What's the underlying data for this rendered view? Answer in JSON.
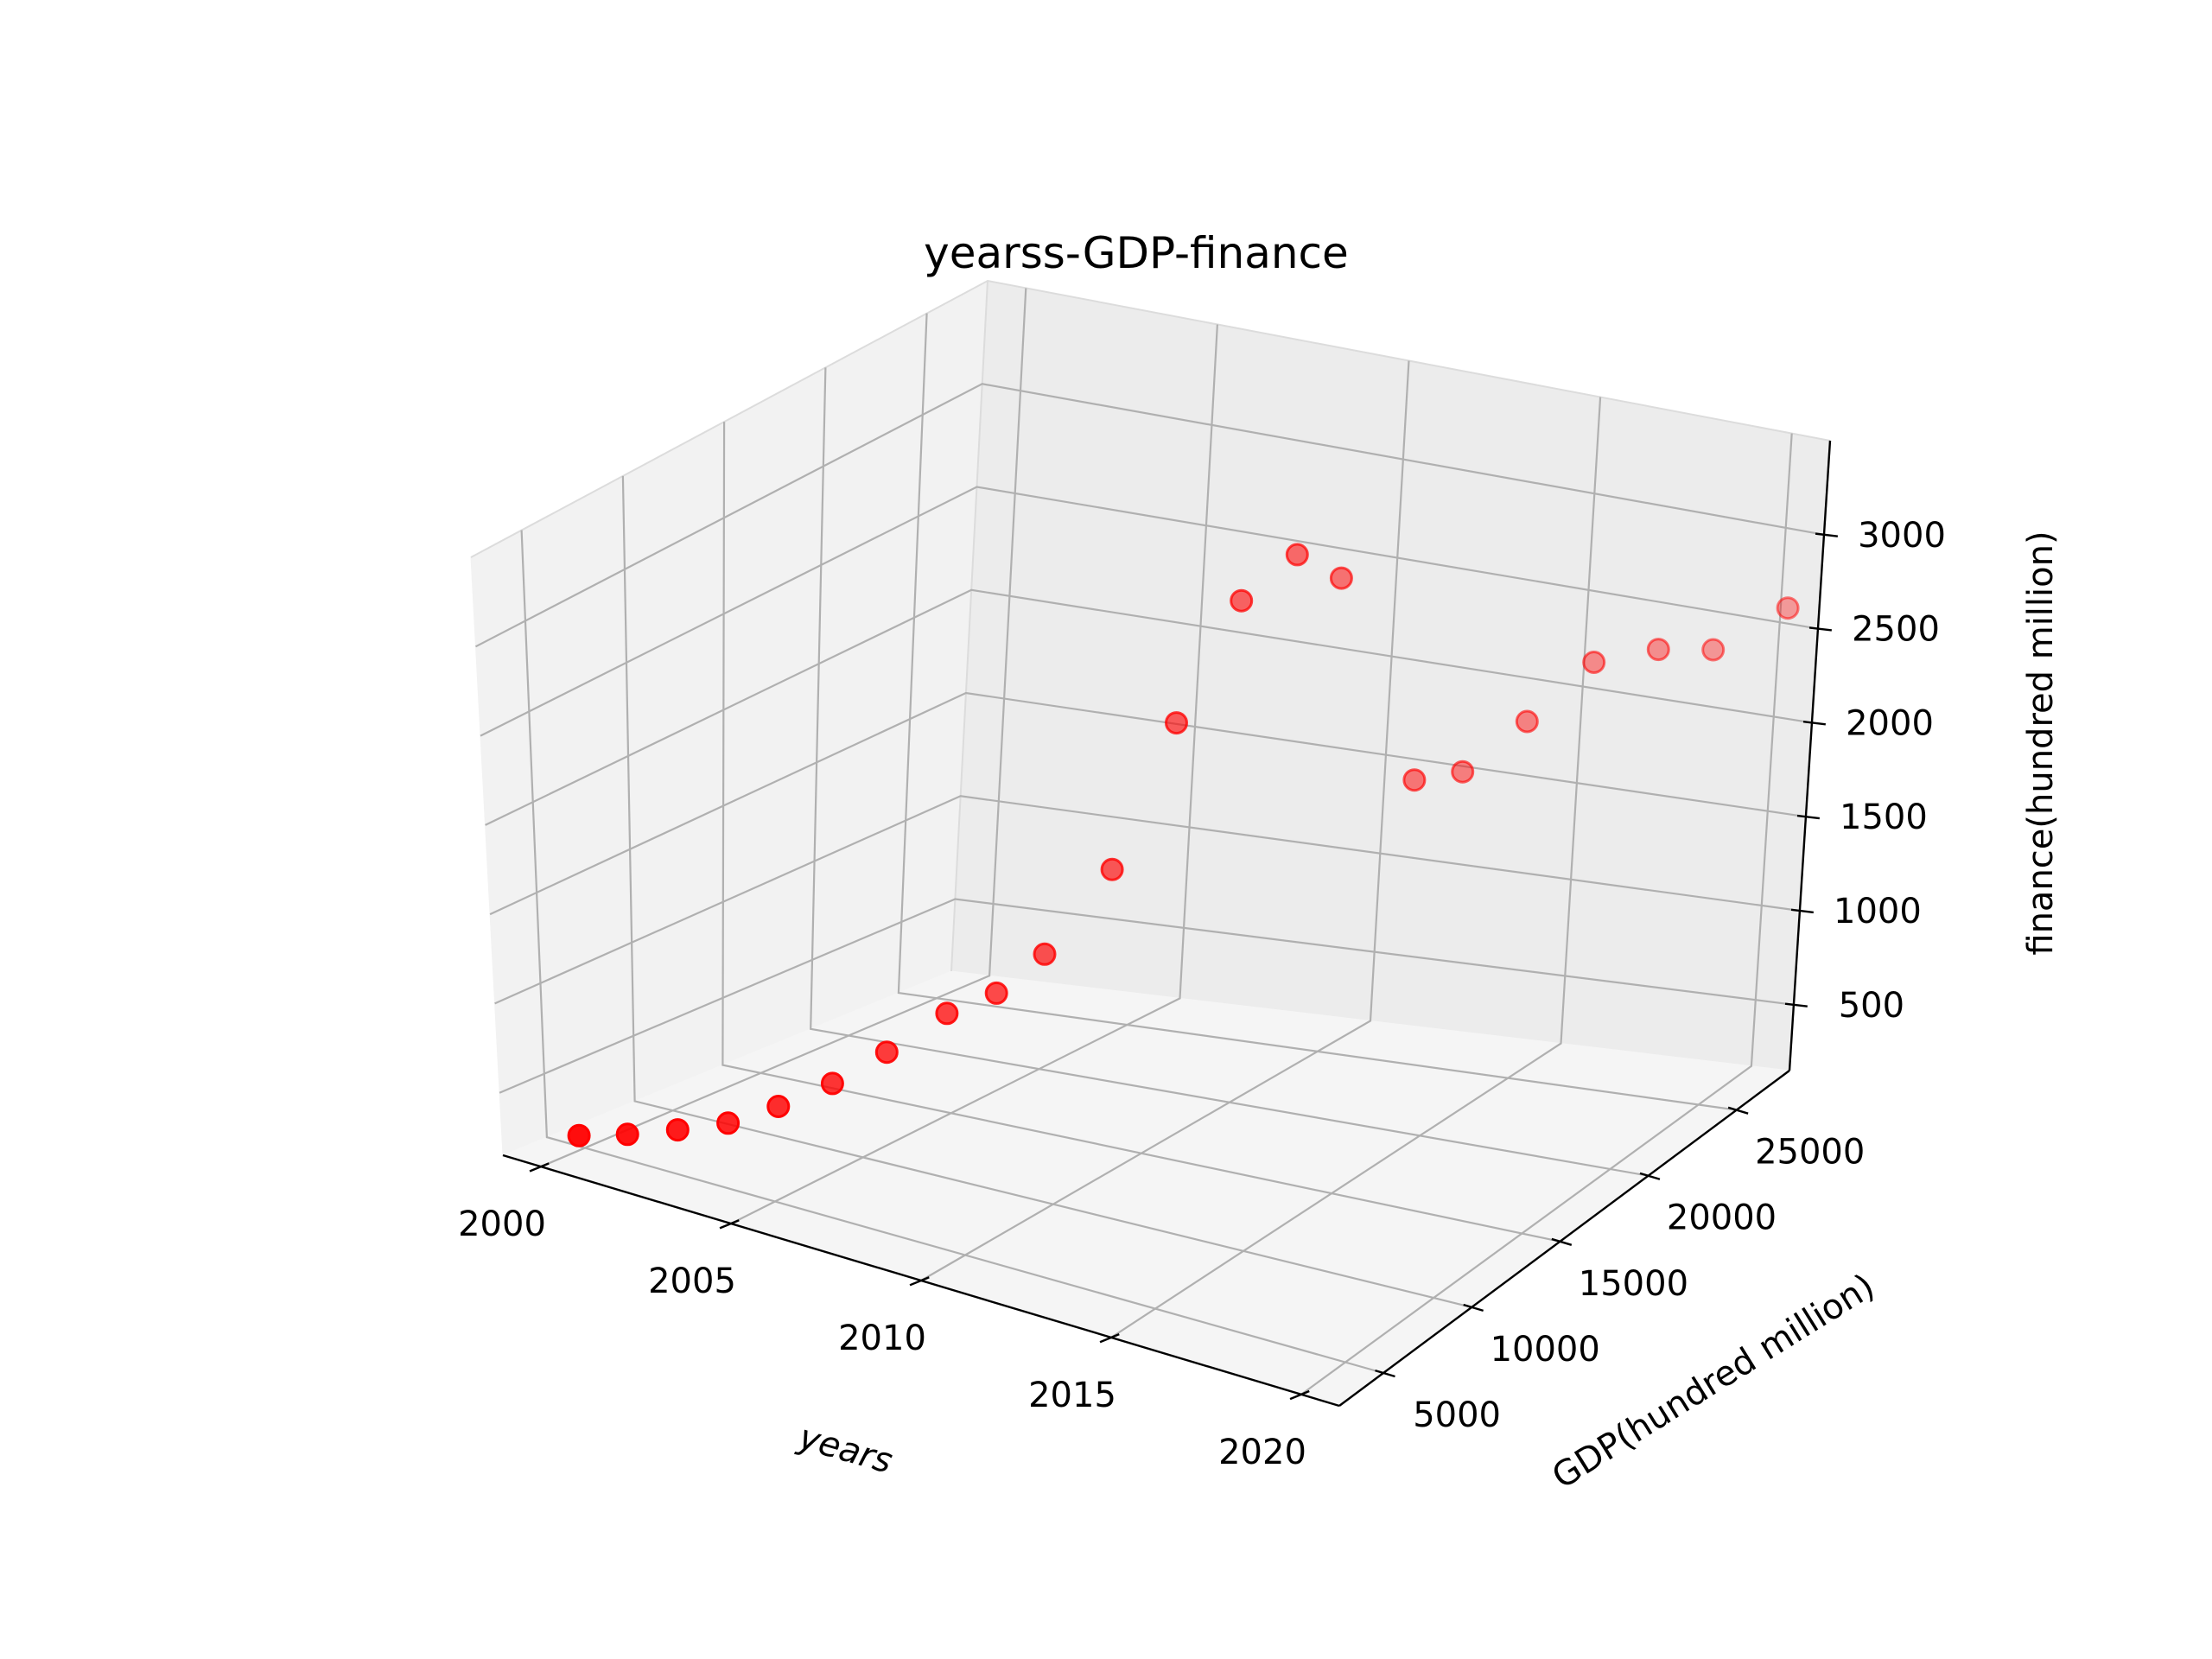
{
  "chart_data": {
    "type": "scatter3d",
    "title": "yearss-GDP-finance",
    "xlabel": "years",
    "ylabel": "GDP(hundred million)",
    "zlabel": "finance(hundred million)",
    "x_ticks": [
      "2000",
      "2005",
      "2010",
      "2015",
      "2020"
    ],
    "y_ticks": [
      "5000",
      "10000",
      "15000",
      "20000",
      "25000"
    ],
    "z_ticks": [
      "500",
      "1000",
      "1500",
      "2000",
      "2500",
      "3000"
    ],
    "xlim": [
      1999,
      2021
    ],
    "ylim": [
      2500,
      28000
    ],
    "zlim": [
      150,
      3500
    ],
    "grid": true,
    "marker_color": "#ff0000",
    "points": [
      {
        "x": 2000,
        "y": 4700,
        "z": 230
      },
      {
        "x": 2001,
        "y": 5300,
        "z": 270
      },
      {
        "x": 2002,
        "y": 6000,
        "z": 320
      },
      {
        "x": 2003,
        "y": 6700,
        "z": 380
      },
      {
        "x": 2004,
        "y": 7400,
        "z": 490
      },
      {
        "x": 2005,
        "y": 8300,
        "z": 620
      },
      {
        "x": 2006,
        "y": 9200,
        "z": 790
      },
      {
        "x": 2007,
        "y": 10400,
        "z": 980
      },
      {
        "x": 2008,
        "y": 11000,
        "z": 1100
      },
      {
        "x": 2009,
        "y": 11500,
        "z": 1320
      },
      {
        "x": 2010,
        "y": 13000,
        "z": 1720
      },
      {
        "x": 2011,
        "y": 14200,
        "z": 2450
      },
      {
        "x": 2012,
        "y": 15400,
        "z": 3050
      },
      {
        "x": 2013,
        "y": 16200,
        "z": 3280
      },
      {
        "x": 2014,
        "y": 16500,
        "z": 3180
      },
      {
        "x": 2015,
        "y": 18800,
        "z": 2050
      },
      {
        "x": 2016,
        "y": 19300,
        "z": 2100
      },
      {
        "x": 2017,
        "y": 20600,
        "z": 2320
      },
      {
        "x": 2018,
        "y": 22000,
        "z": 2580
      },
      {
        "x": 2019,
        "y": 23400,
        "z": 2600
      },
      {
        "x": 2020,
        "y": 24300,
        "z": 2580
      },
      {
        "x": 2021,
        "y": 26200,
        "z": 2720
      }
    ]
  }
}
